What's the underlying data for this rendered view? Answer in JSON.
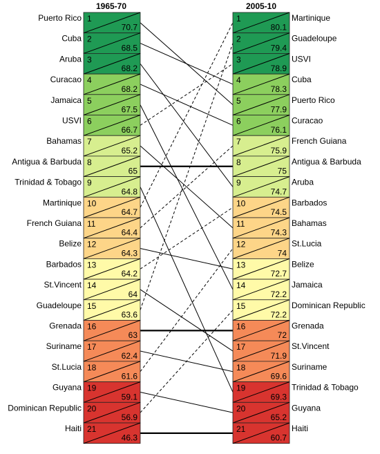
{
  "chart_data": {
    "type": "table",
    "left_header": "1965-70",
    "right_header": "2005-10",
    "left": [
      {
        "rank": "1",
        "name": "Puerto Rico",
        "value": "70.7",
        "color": "#1f9a54"
      },
      {
        "rank": "2",
        "name": "Cuba",
        "value": "68.5",
        "color": "#1f9a54"
      },
      {
        "rank": "3",
        "name": "Aruba",
        "value": "68.2",
        "color": "#1f9a54"
      },
      {
        "rank": "4",
        "name": "Curacao",
        "value": "68.2",
        "color": "#8ccf5e"
      },
      {
        "rank": "5",
        "name": "Jamaica",
        "value": "67.5",
        "color": "#8ccf5e"
      },
      {
        "rank": "6",
        "name": "USVI",
        "value": "66.7",
        "color": "#8ccf5e"
      },
      {
        "rank": "7",
        "name": "Bahamas",
        "value": "65.2",
        "color": "#d7ee8f"
      },
      {
        "rank": "8",
        "name": "Antigua & Barbuda",
        "value": "65",
        "color": "#d7ee8f"
      },
      {
        "rank": "9",
        "name": "Trinidad & Tobago",
        "value": "64.8",
        "color": "#d7ee8f"
      },
      {
        "rank": "10",
        "name": "Martinique",
        "value": "64.7",
        "color": "#fdd588"
      },
      {
        "rank": "11",
        "name": "French Guiana",
        "value": "64.4",
        "color": "#fdd588"
      },
      {
        "rank": "12",
        "name": "Belize",
        "value": "64.3",
        "color": "#fdd588"
      },
      {
        "rank": "13",
        "name": "Barbados",
        "value": "64.2",
        "color": "#fffaa8"
      },
      {
        "rank": "14",
        "name": "St.Vincent",
        "value": "64",
        "color": "#fffaa8"
      },
      {
        "rank": "15",
        "name": "Guadeloupe",
        "value": "63.6",
        "color": "#fffaa8"
      },
      {
        "rank": "16",
        "name": "Grenada",
        "value": "63",
        "color": "#f58a58"
      },
      {
        "rank": "17",
        "name": "Suriname",
        "value": "62.4",
        "color": "#f58a58"
      },
      {
        "rank": "18",
        "name": "St.Lucia",
        "value": "61.6",
        "color": "#f58a58"
      },
      {
        "rank": "19",
        "name": "Guyana",
        "value": "59.1",
        "color": "#d8342f"
      },
      {
        "rank": "20",
        "name": "Dominican Republic",
        "value": "56.9",
        "color": "#d8342f"
      },
      {
        "rank": "21",
        "name": "Haiti",
        "value": "46.3",
        "color": "#d8342f"
      }
    ],
    "right": [
      {
        "rank": "1",
        "name": "Martinique",
        "value": "80.1",
        "color": "#1f9a54"
      },
      {
        "rank": "2",
        "name": "Guadeloupe",
        "value": "79.4",
        "color": "#1f9a54"
      },
      {
        "rank": "3",
        "name": "USVI",
        "value": "78.9",
        "color": "#1f9a54"
      },
      {
        "rank": "4",
        "name": "Cuba",
        "value": "78.3",
        "color": "#8ccf5e"
      },
      {
        "rank": "5",
        "name": "Puerto Rico",
        "value": "77.9",
        "color": "#8ccf5e"
      },
      {
        "rank": "6",
        "name": "Curacao",
        "value": "76.1",
        "color": "#8ccf5e"
      },
      {
        "rank": "7",
        "name": "French Guiana",
        "value": "75.9",
        "color": "#d7ee8f"
      },
      {
        "rank": "8",
        "name": "Antigua & Barbuda",
        "value": "75",
        "color": "#d7ee8f"
      },
      {
        "rank": "9",
        "name": "Aruba",
        "value": "74.7",
        "color": "#d7ee8f"
      },
      {
        "rank": "10",
        "name": "Barbados",
        "value": "74.5",
        "color": "#fdd588"
      },
      {
        "rank": "11",
        "name": "Bahamas",
        "value": "74.3",
        "color": "#fdd588"
      },
      {
        "rank": "12",
        "name": "St.Lucia",
        "value": "74",
        "color": "#fdd588"
      },
      {
        "rank": "13",
        "name": "Belize",
        "value": "72.7",
        "color": "#fffaa8"
      },
      {
        "rank": "14",
        "name": "Jamaica",
        "value": "72.2",
        "color": "#fffaa8"
      },
      {
        "rank": "15",
        "name": "Dominican Republic",
        "value": "72.2",
        "color": "#fffaa8"
      },
      {
        "rank": "16",
        "name": "Grenada",
        "value": "72",
        "color": "#f58a58"
      },
      {
        "rank": "17",
        "name": "St.Vincent",
        "value": "71.9",
        "color": "#f58a58"
      },
      {
        "rank": "18",
        "name": "Suriname",
        "value": "69.6",
        "color": "#f58a58"
      },
      {
        "rank": "19",
        "name": "Trinidad & Tobago",
        "value": "69.3",
        "color": "#d8342f"
      },
      {
        "rank": "20",
        "name": "Guyana",
        "value": "65.2",
        "color": "#d8342f"
      },
      {
        "rank": "21",
        "name": "Haiti",
        "value": "60.7",
        "color": "#d8342f"
      }
    ]
  }
}
